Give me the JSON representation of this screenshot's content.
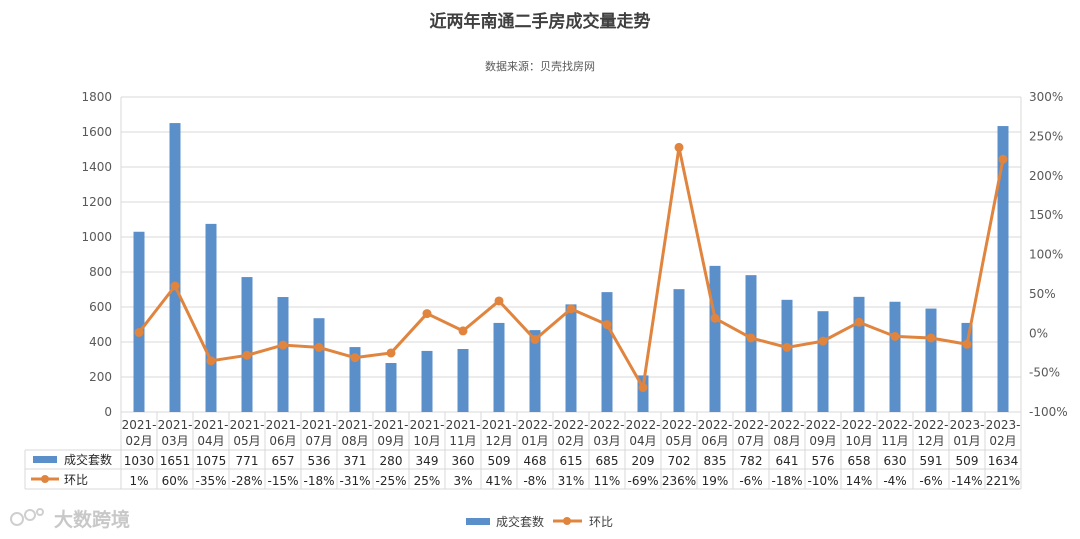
{
  "chart_data": {
    "type": "bar",
    "title": "近两年南通二手房成交量走势",
    "subtitle": "数据来源：贝壳找房网",
    "categories": [
      [
        "2021-",
        "02月"
      ],
      [
        "2021-",
        "03月"
      ],
      [
        "2021-",
        "04月"
      ],
      [
        "2021-",
        "05月"
      ],
      [
        "2021-",
        "06月"
      ],
      [
        "2021-",
        "07月"
      ],
      [
        "2021-",
        "08月"
      ],
      [
        "2021-",
        "09月"
      ],
      [
        "2021-",
        "10月"
      ],
      [
        "2021-",
        "11月"
      ],
      [
        "2021-",
        "12月"
      ],
      [
        "2022-",
        "01月"
      ],
      [
        "2022-",
        "02月"
      ],
      [
        "2022-",
        "03月"
      ],
      [
        "2022-",
        "04月"
      ],
      [
        "2022-",
        "05月"
      ],
      [
        "2022-",
        "06月"
      ],
      [
        "2022-",
        "07月"
      ],
      [
        "2022-",
        "08月"
      ],
      [
        "2022-",
        "09月"
      ],
      [
        "2022-",
        "10月"
      ],
      [
        "2022-",
        "11月"
      ],
      [
        "2022-",
        "12月"
      ],
      [
        "2023-",
        "01月"
      ],
      [
        "2023-",
        "02月"
      ]
    ],
    "series": [
      {
        "name": "成交套数",
        "type": "bar",
        "axis": "left",
        "color": "#5b8fc9",
        "values": [
          1030,
          1651,
          1075,
          771,
          657,
          536,
          371,
          280,
          349,
          360,
          509,
          468,
          615,
          685,
          209,
          702,
          835,
          782,
          641,
          576,
          658,
          630,
          591,
          509,
          1634
        ],
        "labels": [
          "1030",
          "1651",
          "1075",
          "771",
          "657",
          "536",
          "371",
          "280",
          "349",
          "360",
          "509",
          "468",
          "615",
          "685",
          "209",
          "702",
          "835",
          "782",
          "641",
          "576",
          "658",
          "630",
          "591",
          "509",
          "1634"
        ]
      },
      {
        "name": "环比",
        "type": "line",
        "axis": "right",
        "color": "#e0843e",
        "values": [
          1,
          60,
          -35,
          -28,
          -15,
          -18,
          -31,
          -25,
          25,
          3,
          41,
          -8,
          31,
          11,
          -69,
          236,
          19,
          -6,
          -18,
          -10,
          14,
          -4,
          -6,
          -14,
          221
        ],
        "labels": [
          "1%",
          "60%",
          "-35%",
          "-28%",
          "-15%",
          "-18%",
          "-31%",
          "-25%",
          "25%",
          "3%",
          "41%",
          "-8%",
          "31%",
          "11%",
          "-69%",
          "236%",
          "19%",
          "-6%",
          "-18%",
          "-10%",
          "14%",
          "-4%",
          "-6%",
          "-14%",
          "221%"
        ]
      }
    ],
    "y_left": {
      "min": 0,
      "max": 1800,
      "ticks": [
        "0",
        "200",
        "400",
        "600",
        "800",
        "1000",
        "1200",
        "1400",
        "1600",
        "1800"
      ]
    },
    "y_right": {
      "min": -100,
      "max": 300,
      "ticks": [
        "-100%",
        "-50%",
        "0%",
        "50%",
        "100%",
        "150%",
        "200%",
        "250%",
        "300%"
      ]
    },
    "grid": true,
    "legend_position": "bottom",
    "data_table": true
  },
  "watermark": "大数跨境",
  "colors": {
    "grid": "#d9d9d9",
    "axis_text": "#595959"
  }
}
